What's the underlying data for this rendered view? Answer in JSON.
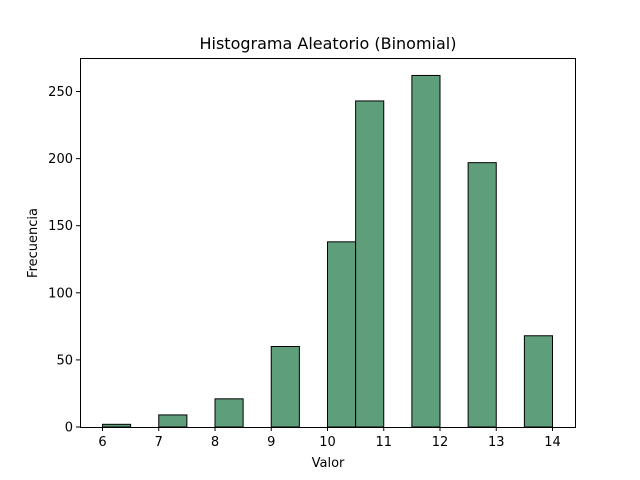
{
  "chart_data": {
    "type": "bar",
    "title": "Histograma Aleatorio (Binomial)",
    "xlabel": "Valor",
    "ylabel": "Frecuencia",
    "bar_color": "#5f9e7a",
    "edge_color": "#000000",
    "grid": false,
    "bins": [
      {
        "left": 6.0,
        "right": 6.5,
        "count": 2
      },
      {
        "left": 6.5,
        "right": 7.0,
        "count": 0
      },
      {
        "left": 7.0,
        "right": 7.5,
        "count": 9
      },
      {
        "left": 7.5,
        "right": 8.0,
        "count": 0
      },
      {
        "left": 8.0,
        "right": 8.5,
        "count": 21
      },
      {
        "left": 8.5,
        "right": 9.0,
        "count": 0
      },
      {
        "left": 9.0,
        "right": 9.5,
        "count": 60
      },
      {
        "left": 9.5,
        "right": 10.0,
        "count": 0
      },
      {
        "left": 10.0,
        "right": 10.5,
        "count": 138
      },
      {
        "left": 10.5,
        "right": 11.0,
        "count": 243
      },
      {
        "left": 11.0,
        "right": 11.5,
        "count": 0
      },
      {
        "left": 11.5,
        "right": 12.0,
        "count": 262
      },
      {
        "left": 12.0,
        "right": 12.5,
        "count": 0
      },
      {
        "left": 12.5,
        "right": 13.0,
        "count": 197
      },
      {
        "left": 13.0,
        "right": 13.5,
        "count": 0
      },
      {
        "left": 13.5,
        "right": 14.0,
        "count": 68
      }
    ],
    "xlim": [
      5.6,
      14.4
    ],
    "ylim": [
      0,
      275
    ],
    "xticks": [
      "6",
      "7",
      "8",
      "9",
      "10",
      "11",
      "12",
      "13",
      "14"
    ],
    "yticks": [
      "0",
      "50",
      "100",
      "150",
      "200",
      "250"
    ]
  }
}
